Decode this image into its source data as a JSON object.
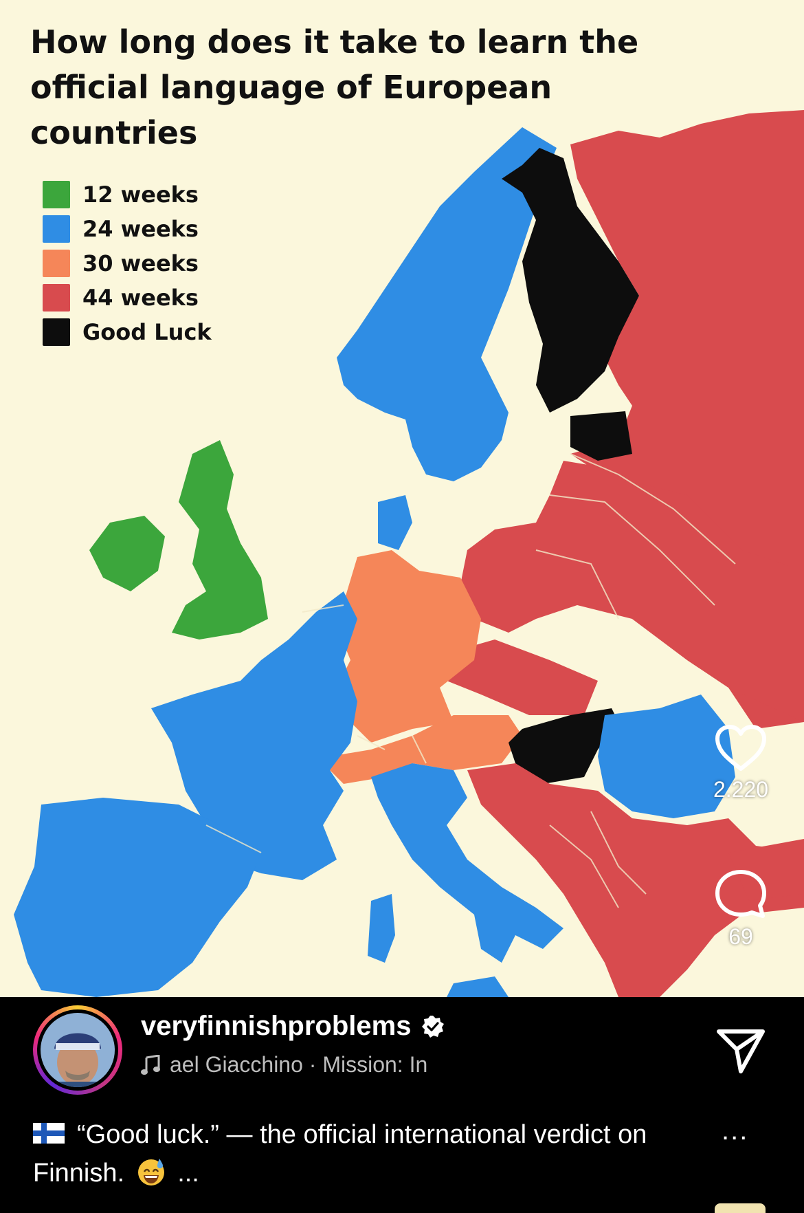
{
  "post": {
    "image": {
      "title": "How long does it take to learn the official language of European countries",
      "legend": [
        {
          "label": "12 weeks",
          "color": "#3ca63c"
        },
        {
          "label": "24 weeks",
          "color": "#2f8de4"
        },
        {
          "label": "30 weeks",
          "color": "#f58659"
        },
        {
          "label": "44 weeks",
          "color": "#d84b4e"
        },
        {
          "label": "Good Luck",
          "color": "#0d0d0d"
        }
      ],
      "background_color": "#fbf7dc",
      "sea_color": "#fbf7dc"
    },
    "actions": {
      "like_icon": "heart-icon",
      "like_count": "2.220",
      "comment_icon": "comment-icon",
      "comment_count": "69"
    },
    "author": {
      "username": "veryfinnishproblems",
      "verified_icon": "verified-badge-icon",
      "audio_icon": "music-note-icon",
      "audio_text": "ael Giacchino · Mission: In"
    },
    "share_icon": "send-icon",
    "more_label": "...",
    "caption": {
      "flag_icon": "finland-flag-icon",
      "text_main": "“Good luck.” — the official international verdict on Finnish.",
      "emoji_icon": "sweat-smile-emoji-icon",
      "more": "..."
    }
  }
}
